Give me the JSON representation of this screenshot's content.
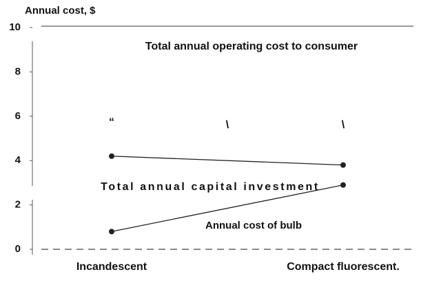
{
  "chart_data": {
    "type": "line",
    "ylabel": "Annual cost, $",
    "categories": [
      "Incandescent",
      "Compact fluorescent."
    ],
    "series": [
      {
        "name": "Total annual capital investment",
        "color": "#222222",
        "values": [
          4.2,
          3.8
        ]
      },
      {
        "name": "Annual cost of bulb",
        "color": "#222222",
        "values": [
          0.8,
          2.9
        ]
      }
    ],
    "annotations": [
      "Total annual operating cost to consumer",
      "“",
      "\\",
      "\\"
    ],
    "ylim": [
      0,
      10
    ],
    "yticks": [
      0,
      2,
      4,
      6,
      8,
      10
    ]
  }
}
